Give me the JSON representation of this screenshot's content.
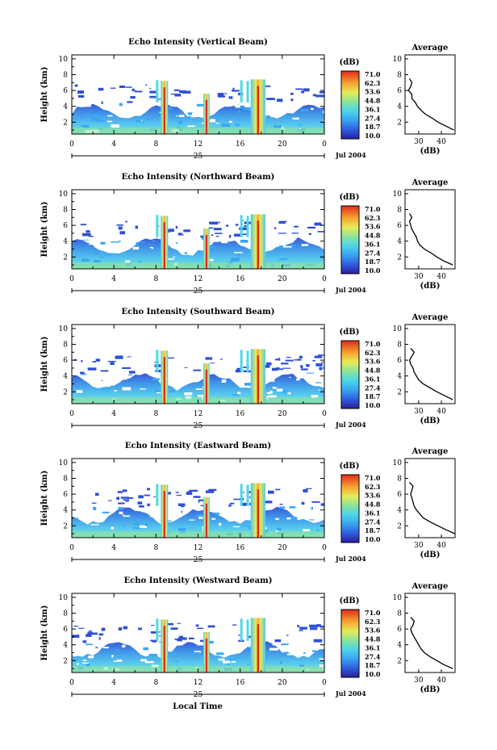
{
  "figure": {
    "xlabel": "Local Time",
    "date_label": "Jul 2004",
    "colorbar_unit": "(dB)",
    "profile_title": "Average",
    "profile_xlabel": "(dB)",
    "ylabel": "Height (km)"
  },
  "chart_data": [
    {
      "type": "heatmap",
      "title": "Echo Intensity (Vertical Beam)",
      "x_ticks": [
        "0",
        "4",
        "8",
        "12",
        "16",
        "20",
        "0"
      ],
      "day_label": "25",
      "y_ticks": [
        "2",
        "4",
        "6",
        "8",
        "10"
      ],
      "xlim": [
        0,
        24
      ],
      "ylim": [
        0.5,
        10.5
      ],
      "colorbar_ticks": [
        "71.0",
        "62.3",
        "53.6",
        "44.8",
        "36.1",
        "27.4",
        "18.7",
        "10.0"
      ],
      "colorbar_range": [
        10.0,
        71.0
      ],
      "profile": {
        "x_ticks": [
          "30",
          "40"
        ],
        "xlim": [
          24,
          46
        ],
        "height": [
          1.0,
          1.5,
          2.0,
          2.5,
          3.0,
          3.5,
          4.0,
          4.5,
          5.0,
          5.5,
          6.0,
          6.5,
          7.0,
          7.5
        ],
        "value": [
          45.5,
          42,
          38.5,
          36,
          33,
          31,
          29.5,
          28.5,
          27,
          27,
          25.5,
          26.5,
          27,
          26
        ]
      }
    },
    {
      "type": "heatmap",
      "title": "Echo Intensity (Northward Beam)",
      "x_ticks": [
        "0",
        "4",
        "8",
        "12",
        "16",
        "20",
        "0"
      ],
      "day_label": "25",
      "y_ticks": [
        "2",
        "4",
        "6",
        "8",
        "10"
      ],
      "xlim": [
        0,
        24
      ],
      "ylim": [
        0.5,
        10.5
      ],
      "colorbar_ticks": [
        "71.0",
        "62.3",
        "53.6",
        "44.8",
        "36.1",
        "27.4",
        "18.7",
        "10.0"
      ],
      "colorbar_range": [
        10.0,
        71.0
      ],
      "profile": {
        "x_ticks": [
          "30",
          "40"
        ],
        "xlim": [
          24,
          46
        ],
        "height": [
          1.0,
          1.5,
          2.0,
          2.5,
          3.0,
          3.5,
          4.0,
          4.5,
          5.0,
          5.5,
          6.0,
          6.5,
          7.0,
          7.5
        ],
        "value": [
          45,
          41,
          38,
          35.5,
          32.5,
          30.5,
          29.5,
          29,
          28,
          27,
          26.5,
          26,
          27,
          26
        ]
      }
    },
    {
      "type": "heatmap",
      "title": "Echo Intensity (Southward Beam)",
      "x_ticks": [
        "0",
        "4",
        "8",
        "12",
        "16",
        "20",
        "0"
      ],
      "day_label": "25",
      "y_ticks": [
        "2",
        "4",
        "6",
        "8",
        "10"
      ],
      "xlim": [
        0,
        24
      ],
      "ylim": [
        0.5,
        10.5
      ],
      "colorbar_ticks": [
        "71.0",
        "62.3",
        "53.6",
        "44.8",
        "36.1",
        "27.4",
        "18.7",
        "10.0"
      ],
      "colorbar_range": [
        10.0,
        71.0
      ],
      "profile": {
        "x_ticks": [
          "30",
          "40"
        ],
        "xlim": [
          24,
          46
        ],
        "height": [
          1.0,
          1.5,
          2.0,
          2.5,
          3.0,
          3.5,
          4.0,
          4.5,
          5.0,
          5.5,
          6.0,
          6.5,
          7.0,
          7.5
        ],
        "value": [
          45,
          41.5,
          38,
          35,
          32,
          30,
          29,
          28,
          27.5,
          26.5,
          26,
          27,
          28,
          26.5
        ]
      }
    },
    {
      "type": "heatmap",
      "title": "Echo Intensity (Eastward Beam)",
      "x_ticks": [
        "0",
        "4",
        "8",
        "12",
        "16",
        "20",
        "0"
      ],
      "day_label": "25",
      "y_ticks": [
        "2",
        "4",
        "6",
        "8",
        "10"
      ],
      "xlim": [
        0,
        24
      ],
      "ylim": [
        0.5,
        10.5
      ],
      "colorbar_ticks": [
        "71.0",
        "62.3",
        "53.6",
        "44.8",
        "36.1",
        "27.4",
        "18.7",
        "10.0"
      ],
      "colorbar_range": [
        10.0,
        71.0
      ],
      "profile": {
        "x_ticks": [
          "30",
          "40"
        ],
        "xlim": [
          24,
          46
        ],
        "height": [
          1.0,
          1.5,
          2.0,
          2.5,
          3.0,
          3.5,
          4.0,
          4.5,
          5.0,
          5.5,
          6.0,
          6.5,
          7.0,
          7.5
        ],
        "value": [
          46,
          42,
          38.5,
          35,
          32,
          30.5,
          29,
          28,
          27.5,
          27,
          26.5,
          27,
          27.5,
          26
        ]
      }
    },
    {
      "type": "heatmap",
      "title": "Echo Intensity (Westward Beam)",
      "x_ticks": [
        "0",
        "4",
        "8",
        "12",
        "16",
        "20",
        "0"
      ],
      "day_label": "25",
      "y_ticks": [
        "2",
        "4",
        "6",
        "8",
        "10"
      ],
      "xlim": [
        0,
        24
      ],
      "ylim": [
        0.5,
        10.5
      ],
      "colorbar_ticks": [
        "71.0",
        "62.3",
        "53.6",
        "44.8",
        "36.1",
        "27.4",
        "18.7",
        "10.0"
      ],
      "colorbar_range": [
        10.0,
        71.0
      ],
      "profile": {
        "x_ticks": [
          "30",
          "40"
        ],
        "xlim": [
          24,
          46
        ],
        "height": [
          1.0,
          1.5,
          2.0,
          2.5,
          3.0,
          3.5,
          4.0,
          4.5,
          5.0,
          5.5,
          6.0,
          6.5,
          7.0,
          7.5
        ],
        "value": [
          45,
          41,
          38,
          35,
          32.5,
          31,
          30,
          29,
          28,
          27,
          26.5,
          27.5,
          28,
          26.5
        ]
      }
    }
  ]
}
